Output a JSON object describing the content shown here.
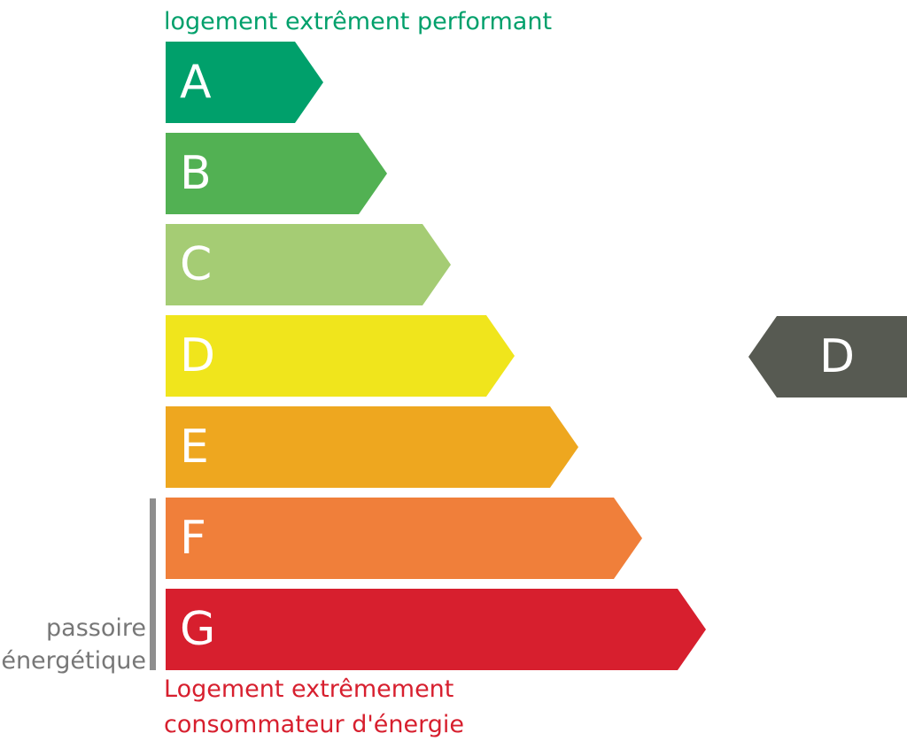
{
  "top_label": "logement extrêment performant",
  "classes": [
    {
      "letter": "A",
      "color": "#00a06b"
    },
    {
      "letter": "B",
      "color": "#52b153"
    },
    {
      "letter": "C",
      "color": "#a5cc74"
    },
    {
      "letter": "D",
      "color": "#f0e51c"
    },
    {
      "letter": "E",
      "color": "#eea71f"
    },
    {
      "letter": "F",
      "color": "#f07f3a"
    },
    {
      "letter": "G",
      "color": "#d71f2e"
    }
  ],
  "side_label": [
    "passoire",
    "énergétique"
  ],
  "bottom_label": [
    "Logement extrêmement",
    "consommateur d'énergie"
  ],
  "indicator": {
    "letter": "D",
    "color": "#575a52"
  }
}
